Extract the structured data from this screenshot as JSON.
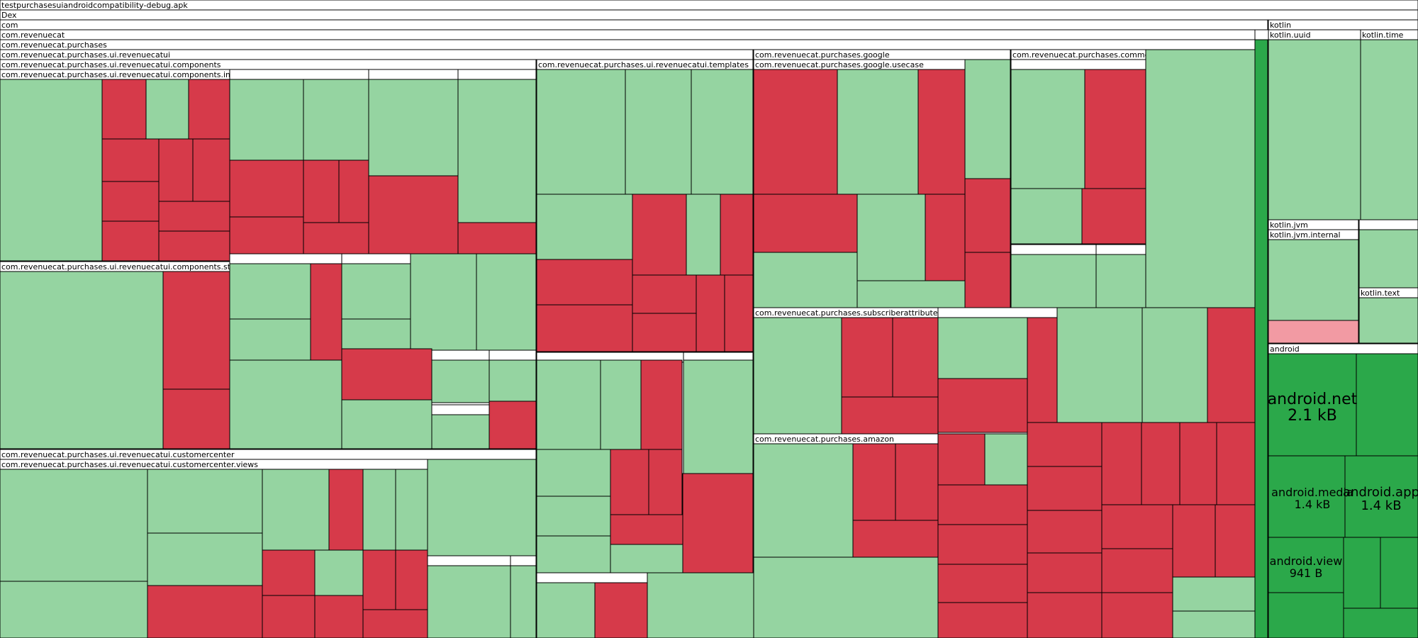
{
  "chart_data": {
    "type": "treemap",
    "title": "testpurchasesuiandroidcompatibility-debug.apk",
    "colors": {
      "increase": "#d63a4a",
      "decrease": "#95d4a1",
      "strong_decrease": "#2ba84a",
      "light_increase": "#f29aa3",
      "header": "#ffffff",
      "border": "#000000"
    },
    "headers": [
      "testpurchasesuiandroidcompatibility-debug.apk",
      "Dex",
      "com",
      "com.revenuecat",
      "com.revenuecat.purchases",
      "com.revenuecat.purchases.ui.revenuecatui",
      "com.revenuecat.purchases.ui.revenuecatui.components",
      "com.revenuecat.purchases.ui.revenuecatui.components.image",
      "com.revenuecat.purchases.ui.revenuecatui.components.stack",
      "com.revenuecat.purchases.ui.revenuecatui.templates",
      "com.revenuecat.purchases.google",
      "com.revenuecat.purchases.google.usecase",
      "com.revenuecat.purchases.common",
      "com.revenuecat.purchases.subscriberattributes",
      "com.revenuecat.purchases.amazon",
      "com.revenuecat.purchases.ui.revenuecatui.customercenter",
      "com.revenuecat.purchases.ui.revenuecatui.customercenter.views",
      "kotlin",
      "kotlin.uuid",
      "kotlin.time",
      "kotlin.jvm",
      "kotlin.jvm.internal",
      "kotlin.text",
      "android"
    ],
    "highlighted": [
      {
        "name": "android.net",
        "size": "2.1 kB"
      },
      {
        "name": "android.media",
        "size": "1.4 kB"
      },
      {
        "name": "android.app",
        "size": "1.4 kB"
      },
      {
        "name": "android.view",
        "size": "941 B"
      }
    ]
  }
}
